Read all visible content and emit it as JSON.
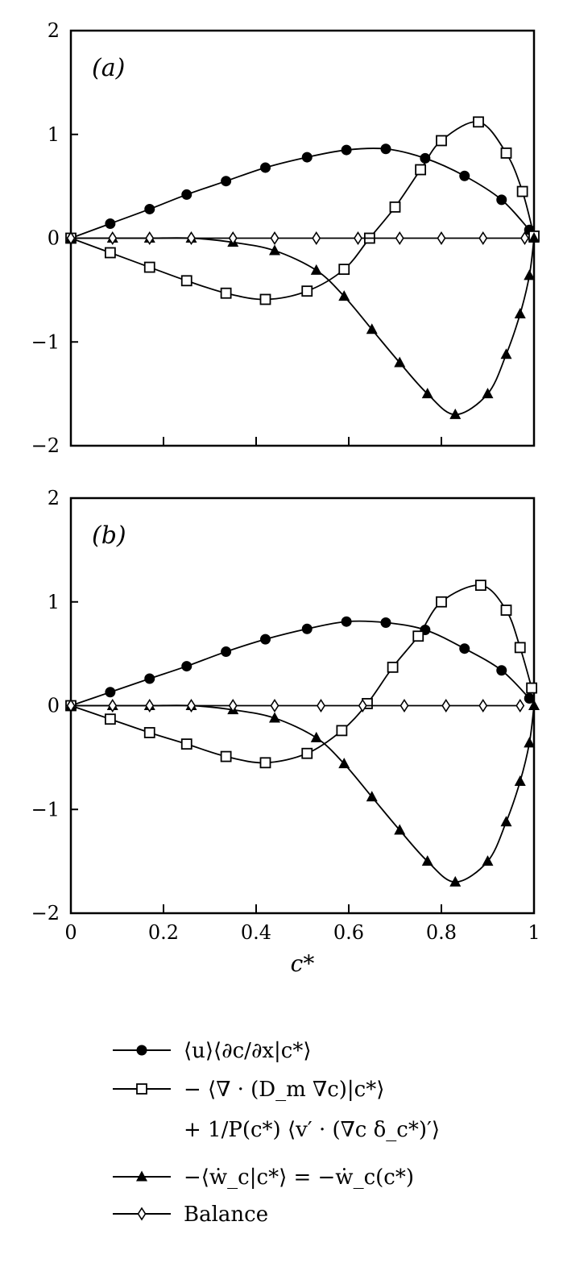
{
  "chart_data": [
    {
      "type": "line",
      "panel_label": "(a)",
      "xlim": [
        0,
        1
      ],
      "ylim": [
        -2,
        2
      ],
      "xticks": [
        0,
        0.2,
        0.4,
        0.6,
        0.8,
        1
      ],
      "yticks": [
        -2,
        -1,
        0,
        1,
        2
      ],
      "ytick_labels": [
        "−2",
        "−1",
        "0",
        "1",
        "2"
      ],
      "grid": false,
      "series": [
        {
          "key": "convection",
          "marker": "filled-circle",
          "x": [
            0,
            0.085,
            0.17,
            0.25,
            0.335,
            0.42,
            0.51,
            0.595,
            0.68,
            0.765,
            0.85,
            0.93,
            0.99
          ],
          "y": [
            0,
            0.14,
            0.28,
            0.42,
            0.55,
            0.68,
            0.78,
            0.85,
            0.86,
            0.77,
            0.6,
            0.37,
            0.08
          ]
        },
        {
          "key": "diffusion",
          "marker": "open-square",
          "x": [
            0,
            0.085,
            0.17,
            0.25,
            0.335,
            0.42,
            0.51,
            0.59,
            0.645,
            0.7,
            0.755,
            0.8,
            0.88,
            0.94,
            0.975,
            1.0
          ],
          "y": [
            0,
            -0.14,
            -0.28,
            -0.41,
            -0.53,
            -0.59,
            -0.51,
            -0.3,
            0.0,
            0.3,
            0.66,
            0.94,
            1.12,
            0.82,
            0.45,
            0.02
          ]
        },
        {
          "key": "reaction",
          "marker": "filled-triangle",
          "x": [
            0,
            0.09,
            0.17,
            0.26,
            0.35,
            0.44,
            0.53,
            0.59,
            0.65,
            0.71,
            0.77,
            0.83,
            0.9,
            0.94,
            0.97,
            0.99,
            1.0
          ],
          "y": [
            0,
            0,
            0,
            0,
            -0.04,
            -0.12,
            -0.31,
            -0.56,
            -0.88,
            -1.2,
            -1.5,
            -1.7,
            -1.5,
            -1.12,
            -0.73,
            -0.36,
            0
          ]
        },
        {
          "key": "balance",
          "marker": "open-diamond",
          "x": [
            0,
            0.09,
            0.17,
            0.26,
            0.35,
            0.44,
            0.53,
            0.62,
            0.71,
            0.8,
            0.89,
            0.98
          ],
          "y": [
            0,
            0,
            0,
            0,
            0,
            0,
            0,
            0,
            0,
            0,
            0,
            0
          ]
        }
      ]
    },
    {
      "type": "line",
      "panel_label": "(b)",
      "xlim": [
        0,
        1
      ],
      "ylim": [
        -2,
        2
      ],
      "xticks": [
        0,
        0.2,
        0.4,
        0.6,
        0.8,
        1
      ],
      "xtick_labels": [
        "0",
        "0.2",
        "0.4",
        "0.6",
        "0.8",
        "1"
      ],
      "yticks": [
        -2,
        -1,
        0,
        1,
        2
      ],
      "ytick_labels": [
        "−2",
        "−1",
        "0",
        "1",
        "2"
      ],
      "xlabel": "c*",
      "grid": false,
      "series": [
        {
          "key": "convection",
          "marker": "filled-circle",
          "x": [
            0,
            0.085,
            0.17,
            0.25,
            0.335,
            0.42,
            0.51,
            0.595,
            0.68,
            0.765,
            0.85,
            0.93,
            0.99
          ],
          "y": [
            0,
            0.13,
            0.26,
            0.38,
            0.52,
            0.64,
            0.74,
            0.81,
            0.8,
            0.73,
            0.55,
            0.34,
            0.07
          ]
        },
        {
          "key": "diffusion",
          "marker": "open-square",
          "x": [
            0,
            0.085,
            0.17,
            0.25,
            0.335,
            0.42,
            0.51,
            0.585,
            0.64,
            0.695,
            0.75,
            0.8,
            0.885,
            0.94,
            0.97,
            0.995
          ],
          "y": [
            0,
            -0.13,
            -0.26,
            -0.37,
            -0.49,
            -0.55,
            -0.46,
            -0.24,
            0.02,
            0.37,
            0.67,
            1.0,
            1.16,
            0.92,
            0.56,
            0.17
          ]
        },
        {
          "key": "reaction",
          "marker": "filled-triangle",
          "x": [
            0,
            0.09,
            0.17,
            0.26,
            0.35,
            0.44,
            0.53,
            0.59,
            0.65,
            0.71,
            0.77,
            0.83,
            0.9,
            0.94,
            0.97,
            0.99,
            1.0
          ],
          "y": [
            0,
            0,
            0,
            0,
            -0.04,
            -0.12,
            -0.31,
            -0.56,
            -0.88,
            -1.2,
            -1.5,
            -1.7,
            -1.5,
            -1.12,
            -0.73,
            -0.36,
            0
          ]
        },
        {
          "key": "balance",
          "marker": "open-diamond",
          "x": [
            0,
            0.09,
            0.17,
            0.26,
            0.35,
            0.44,
            0.54,
            0.63,
            0.72,
            0.81,
            0.89,
            0.97
          ],
          "y": [
            0,
            0,
            0,
            0,
            0,
            0,
            0,
            0,
            0,
            0,
            0,
            0
          ]
        }
      ]
    }
  ],
  "legend": {
    "placement": "below",
    "entries": [
      {
        "key": "convection",
        "marker": "filled-circle",
        "label": "⟨u⟩⟨∂c/∂x|c*⟩"
      },
      {
        "key": "diffusion",
        "marker": "open-square",
        "label": "− ⟨∇ · (D_m ∇c)|c*⟩",
        "label_line2": "+ 1/P(c*) ⟨v′ · (∇c δ_c*)′⟩"
      },
      {
        "key": "reaction",
        "marker": "filled-triangle",
        "label": "−⟨ẇ_c|c*⟩ = −ẇ_c(c*)"
      },
      {
        "key": "balance",
        "marker": "open-diamond",
        "label": "Balance"
      }
    ]
  }
}
